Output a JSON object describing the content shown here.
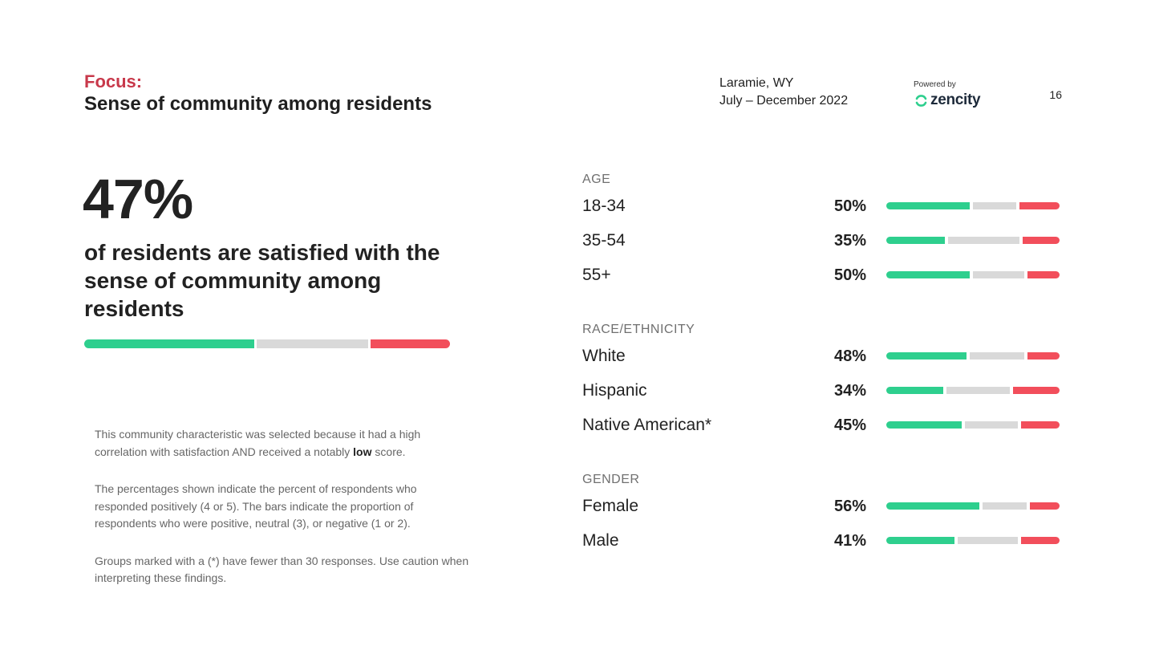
{
  "header": {
    "focus_label": "Focus:",
    "title": "Sense of community among residents",
    "location": "Laramie, WY",
    "period": "July – December 2022",
    "powered_by": "Powered by",
    "logo_text": "zencity",
    "page_number": "16"
  },
  "headline": {
    "value": "47%",
    "description": "of residents are satisfied with the sense of community among residents"
  },
  "notes": {
    "p1_before": "This community characteristic was selected because it had a high correlation with satisfaction AND received a notably ",
    "p1_bold": "low",
    "p1_after": " score.",
    "p2": "The percentages shown indicate the percent of respondents who responded positively (4 or 5). The bars indicate the proportion of respondents who were positive, neutral (3), or negative (1 or 2).",
    "p3": "Groups marked with a (*) have fewer than 30 responses. Use caution when interpreting these findings."
  },
  "colors": {
    "positive": "#2ecf8e",
    "neutral": "#d9d9d9",
    "negative": "#f24e5b",
    "accent": "#c8394b",
    "logo_green": "#2ecf8e"
  },
  "chart_data": [
    {
      "type": "bar",
      "stacked": true,
      "orientation": "horizontal",
      "series": [
        "positive",
        "neutral",
        "negative"
      ],
      "categories": [
        "Overall"
      ],
      "values": [
        [
          47,
          31,
          22
        ]
      ]
    },
    {
      "type": "bar",
      "stacked": true,
      "orientation": "horizontal",
      "series": [
        "positive",
        "neutral",
        "negative"
      ],
      "groups": [
        {
          "title": "AGE",
          "rows": [
            {
              "label": "18-34",
              "value": "50%",
              "segments": [
                50,
                26,
                24
              ]
            },
            {
              "label": "35-54",
              "value": "35%",
              "segments": [
                35,
                43,
                22
              ]
            },
            {
              "label": "55+",
              "value": "50%",
              "segments": [
                50,
                31,
                19
              ]
            }
          ]
        },
        {
          "title": "RACE/ETHNICITY",
          "rows": [
            {
              "label": "White",
              "value": "48%",
              "segments": [
                48,
                33,
                19
              ]
            },
            {
              "label": "Hispanic",
              "value": "34%",
              "segments": [
                34,
                38,
                28
              ]
            },
            {
              "label": "Native American*",
              "value": "45%",
              "segments": [
                45,
                32,
                23
              ]
            }
          ]
        },
        {
          "title": "GENDER",
          "rows": [
            {
              "label": "Female",
              "value": "56%",
              "segments": [
                56,
                26,
                18
              ]
            },
            {
              "label": "Male",
              "value": "41%",
              "segments": [
                41,
                36,
                23
              ]
            }
          ]
        }
      ]
    }
  ]
}
